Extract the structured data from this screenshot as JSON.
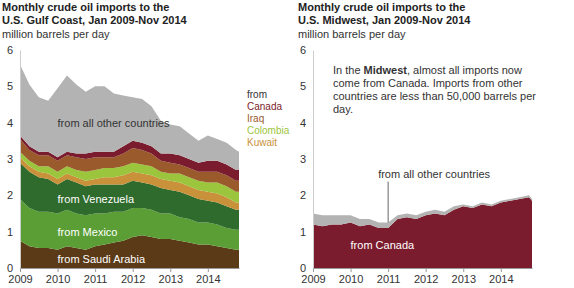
{
  "chart_data": [
    {
      "type": "area",
      "title": [
        "Monthly crude oil imports to the",
        "U.S. Gulf Coast, Jan 2009-Nov 2014"
      ],
      "subtitle": "million barrels per day",
      "stacked": true,
      "grid": false,
      "x": [
        2009,
        2009.25,
        2009.5,
        2009.75,
        2010,
        2010.25,
        2010.5,
        2010.75,
        2011,
        2011.25,
        2011.5,
        2011.75,
        2012,
        2012.25,
        2012.5,
        2012.75,
        2013,
        2013.25,
        2013.5,
        2013.75,
        2014,
        2014.25,
        2014.5,
        2014.75,
        2014.83
      ],
      "xlim": [
        2009,
        2014.83
      ],
      "xticks": [
        2009,
        2010,
        2011,
        2012,
        2013,
        2014
      ],
      "ylim": [
        0,
        6
      ],
      "yticks": [
        0,
        1,
        2,
        3,
        4,
        5,
        6
      ],
      "series": [
        {
          "name": "from Saudi Arabia",
          "color": "#5b3a17",
          "values": [
            0.75,
            0.6,
            0.55,
            0.55,
            0.5,
            0.6,
            0.55,
            0.5,
            0.6,
            0.65,
            0.7,
            0.75,
            0.85,
            0.9,
            0.85,
            0.8,
            0.8,
            0.75,
            0.7,
            0.65,
            0.65,
            0.6,
            0.55,
            0.5,
            0.5
          ]
        },
        {
          "name": "from Mexico",
          "color": "#5a9e35",
          "values": [
            1.15,
            1.05,
            1.0,
            1.0,
            1.0,
            1.0,
            0.95,
            0.95,
            0.9,
            0.85,
            0.85,
            0.8,
            0.8,
            0.75,
            0.75,
            0.7,
            0.7,
            0.65,
            0.65,
            0.6,
            0.6,
            0.6,
            0.55,
            0.55,
            0.55
          ]
        },
        {
          "name": "from Venezuela",
          "color": "#2f6b2c",
          "values": [
            1.0,
            1.0,
            0.95,
            0.9,
            0.8,
            0.85,
            0.85,
            0.8,
            0.8,
            0.8,
            0.75,
            0.75,
            0.75,
            0.7,
            0.7,
            0.7,
            0.65,
            0.7,
            0.65,
            0.65,
            0.6,
            0.6,
            0.6,
            0.55,
            0.55
          ]
        },
        {
          "name": "Kuwait",
          "color": "#c8913a",
          "values": [
            0.15,
            0.15,
            0.15,
            0.15,
            0.15,
            0.15,
            0.15,
            0.15,
            0.15,
            0.2,
            0.2,
            0.25,
            0.25,
            0.25,
            0.25,
            0.25,
            0.25,
            0.25,
            0.25,
            0.25,
            0.25,
            0.25,
            0.25,
            0.2,
            0.2
          ]
        },
        {
          "name": "Colombia",
          "color": "#9bc53d",
          "values": [
            0.15,
            0.15,
            0.15,
            0.2,
            0.2,
            0.2,
            0.2,
            0.25,
            0.25,
            0.25,
            0.25,
            0.25,
            0.25,
            0.25,
            0.25,
            0.2,
            0.2,
            0.25,
            0.25,
            0.25,
            0.25,
            0.3,
            0.3,
            0.3,
            0.3
          ]
        },
        {
          "name": "Iraq",
          "color": "#9a5a2c",
          "values": [
            0.35,
            0.3,
            0.3,
            0.3,
            0.3,
            0.3,
            0.35,
            0.35,
            0.35,
            0.3,
            0.3,
            0.35,
            0.4,
            0.4,
            0.35,
            0.3,
            0.3,
            0.25,
            0.25,
            0.25,
            0.3,
            0.3,
            0.3,
            0.3,
            0.3
          ]
        },
        {
          "name": "Canada",
          "color": "#7b1c2e",
          "values": [
            0.1,
            0.1,
            0.1,
            0.1,
            0.1,
            0.1,
            0.1,
            0.15,
            0.15,
            0.15,
            0.15,
            0.2,
            0.2,
            0.2,
            0.2,
            0.2,
            0.25,
            0.25,
            0.25,
            0.25,
            0.3,
            0.3,
            0.3,
            0.3,
            0.3
          ]
        },
        {
          "name": "from all other countries",
          "color": "#b3b3b3",
          "values": [
            1.95,
            1.7,
            1.5,
            1.4,
            1.9,
            2.1,
            1.9,
            1.7,
            1.8,
            1.8,
            1.6,
            1.4,
            1.2,
            1.2,
            1.1,
            0.9,
            0.8,
            0.8,
            0.7,
            0.6,
            0.7,
            0.6,
            0.6,
            0.55,
            0.5
          ]
        }
      ],
      "annotations": [
        "from"
      ]
    },
    {
      "type": "area",
      "title": [
        "Monthly crude oil imports to the",
        "U.S. Midwest, Jan 2009-Nov 2014"
      ],
      "subtitle": "million barrels per day",
      "stacked": true,
      "grid": false,
      "x": [
        2009,
        2009.25,
        2009.5,
        2009.75,
        2010,
        2010.25,
        2010.5,
        2010.75,
        2011,
        2011.25,
        2011.5,
        2011.75,
        2012,
        2012.25,
        2012.5,
        2012.75,
        2013,
        2013.25,
        2013.5,
        2013.75,
        2014,
        2014.25,
        2014.5,
        2014.75,
        2014.83
      ],
      "xlim": [
        2009,
        2014.83
      ],
      "xticks": [
        2009,
        2010,
        2011,
        2012,
        2013,
        2014
      ],
      "ylim": [
        0,
        6
      ],
      "yticks": [
        0,
        1,
        2,
        3,
        4,
        5,
        6
      ],
      "series": [
        {
          "name": "from Canada",
          "color": "#7b1c2e",
          "values": [
            1.2,
            1.15,
            1.2,
            1.2,
            1.25,
            1.15,
            1.2,
            1.1,
            1.1,
            1.35,
            1.4,
            1.35,
            1.45,
            1.5,
            1.45,
            1.6,
            1.7,
            1.65,
            1.75,
            1.7,
            1.8,
            1.85,
            1.9,
            1.95,
            1.85
          ]
        },
        {
          "name": "from all other countries",
          "color": "#b3b3b3",
          "values": [
            0.3,
            0.3,
            0.25,
            0.25,
            0.2,
            0.2,
            0.15,
            0.15,
            0.15,
            0.1,
            0.1,
            0.1,
            0.1,
            0.1,
            0.1,
            0.1,
            0.05,
            0.05,
            0.05,
            0.05,
            0.05,
            0.05,
            0.05,
            0.05,
            0.05
          ]
        }
      ],
      "annotations": [
        [
          [
            "In the ",
            "Midwest",
            ", almost all imports now"
          ],
          [
            "come from Canada. Imports from other"
          ],
          [
            "countries are less than 50,000 barrels per"
          ],
          [
            "day."
          ]
        ]
      ]
    }
  ]
}
